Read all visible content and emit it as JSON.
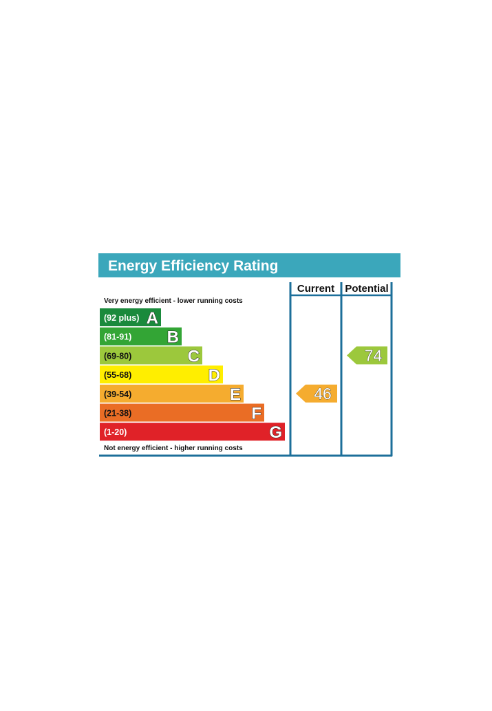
{
  "chart_data": {
    "type": "bar",
    "title": "Energy Efficiency Rating",
    "columns": [
      "Current",
      "Potential"
    ],
    "top_note": "Very energy efficient - lower running costs",
    "bottom_note": "Not energy efficient - higher running costs",
    "bands": [
      {
        "range": "(92 plus)",
        "letter": "A",
        "color": "#1a8a3c"
      },
      {
        "range": "(81-91)",
        "letter": "B",
        "color": "#33a535"
      },
      {
        "range": "(69-80)",
        "letter": "C",
        "color": "#9cc83c"
      },
      {
        "range": "(55-68)",
        "letter": "D",
        "color": "#ffee00"
      },
      {
        "range": "(39-54)",
        "letter": "E",
        "color": "#f5ac2f"
      },
      {
        "range": "(21-38)",
        "letter": "F",
        "color": "#ea6d25"
      },
      {
        "range": "(1-20)",
        "letter": "G",
        "color": "#e02228"
      }
    ],
    "current": {
      "value": 46,
      "band": "E",
      "color": "#f5ac2f"
    },
    "potential": {
      "value": 74,
      "band": "C",
      "color": "#9cc83c"
    }
  },
  "colors": {
    "header": "#3ba7bb",
    "frame": "#1c6f9a"
  }
}
